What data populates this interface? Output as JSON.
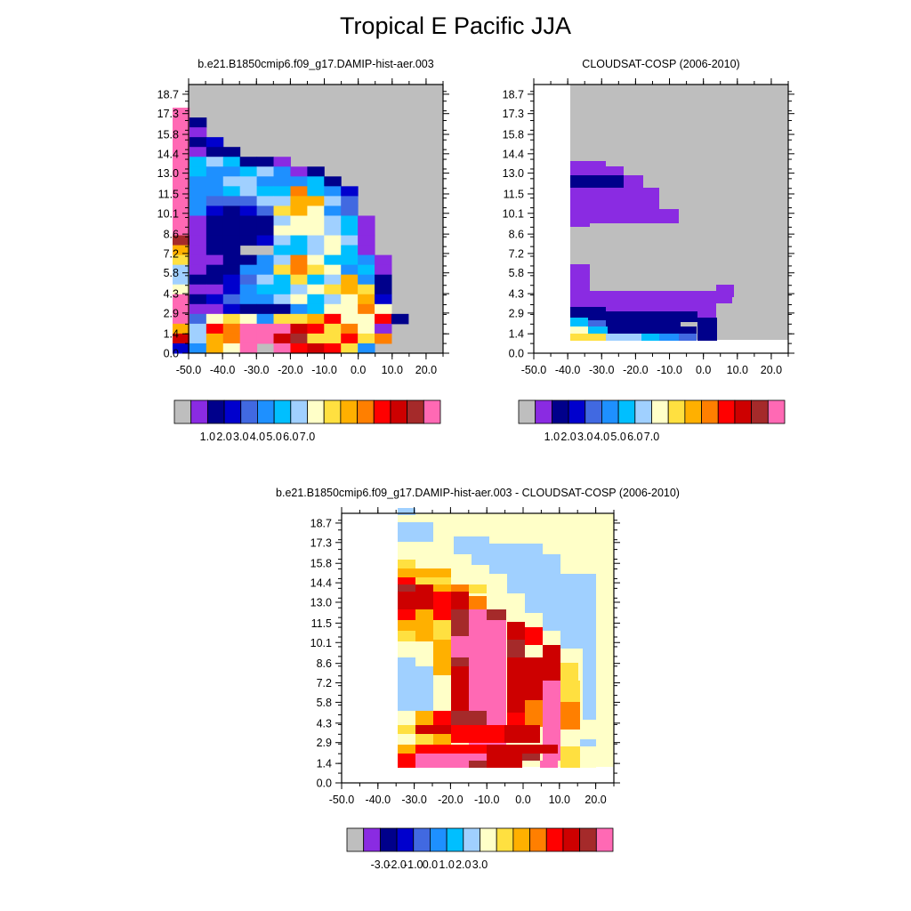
{
  "page": {
    "title": "Tropical E Pacific JJA"
  },
  "colors": {
    "missing": "#bebebe",
    "palette": [
      "#bebebe",
      "#8a2be2",
      "#00008b",
      "#0000cd",
      "#4169e1",
      "#1e90ff",
      "#00bfff",
      "#a0d0ff",
      "#ffffc8",
      "#ffe040",
      "#ffb000",
      "#ff7f00",
      "#ff0000",
      "#cd0000",
      "#a52a2a",
      "#ff69b4"
    ]
  },
  "chart_data": [
    {
      "type": "heatmap",
      "title": "b.e21.B1850cmip6.f09_g17.DAMIP-hist-aer.003",
      "xlabel": "",
      "ylabel": "",
      "x_ticks": [
        "-50.0",
        "-40.0",
        "-30.0",
        "-20.0",
        "-10.0",
        "0.0",
        "10.0",
        "20.0"
      ],
      "y_ticks": [
        "0.0",
        "1.4",
        "2.9",
        "4.3",
        "5.8",
        "7.2",
        "8.6",
        "10.1",
        "11.5",
        "13.0",
        "14.4",
        "15.8",
        "17.3",
        "18.7"
      ],
      "xlim": [
        -50,
        25
      ],
      "ylim": [
        0,
        19.4
      ],
      "colorbar_labels": [
        "1.0",
        "2.0",
        "3.0",
        "4.0",
        "5.0",
        "6.0",
        "7.0"
      ],
      "grid_note": "rows listed from top (y≈19) to bottom (y≈0); columns from x=-50 to x=25 in 5-unit steps; values are color-bin indices (0=missing/grey, 1..15 = colorbar bins)",
      "cells": [
        "0000000000000000",
        "f000000000000000",
        "f200000000000000",
        "f100000000000000",
        "f230000000000000",
        "f122000000000000",
        "f676221000000000",
        "f655675120000000",
        "f557755562000000",
        "f556766b65300000",
        "f544477aa7400000",
        "f532349a85400000",
        "f122227887610000",
        "f122228887610000",
        "e122237678710000",
        "a122006678610000",
        "9112257b86651000",
        "7122559b98561000",
        "7223476967a52000",
        "8113566789a92000",
        "f2345578678a3000",
        "f1132225688b8000",
        "f4898599ac88c200",
        "a7cbfffdc9b81000",
        "d7abffde99c9b000",
        "35a8f0fcdc950000"
      ]
    },
    {
      "type": "heatmap",
      "title": "CLOUDSAT-COSP (2006-2010)",
      "xlabel": "",
      "ylabel": "",
      "x_ticks": [
        "-50.0",
        "-40.0",
        "-30.0",
        "-20.0",
        "-10.0",
        "0.0",
        "10.0",
        "20.0"
      ],
      "y_ticks": [
        "0.0",
        "1.4",
        "2.9",
        "4.3",
        "5.8",
        "7.2",
        "8.6",
        "10.1",
        "11.5",
        "13.0",
        "14.4",
        "15.8",
        "17.3",
        "18.7"
      ],
      "xlim": [
        -50,
        25
      ],
      "ylim": [
        0,
        19.4
      ],
      "colorbar_labels": [
        "1.0",
        "2.0",
        "3.0",
        "4.0",
        "5.0",
        "6.0",
        "7.0"
      ],
      "note": "left of x≈-35 is white (no data); grey = missing; bottom row y<0.4 white"
    },
    {
      "type": "heatmap",
      "title": "b.e21.B1850cmip6.f09_g17.DAMIP-hist-aer.003 - CLOUDSAT-COSP (2006-2010)",
      "xlabel": "",
      "ylabel": "",
      "x_ticks": [
        "-50.0",
        "-40.0",
        "-30.0",
        "-20.0",
        "-10.0",
        "0.0",
        "10.0",
        "20.0"
      ],
      "y_ticks": [
        "0.0",
        "1.4",
        "2.9",
        "4.3",
        "5.8",
        "7.2",
        "8.6",
        "10.1",
        "11.5",
        "13.0",
        "14.4",
        "15.8",
        "17.3",
        "18.7"
      ],
      "xlim": [
        -50,
        25
      ],
      "ylim": [
        0,
        19.4
      ],
      "colorbar_labels": [
        "-3.0",
        "-2.0",
        "-1.0",
        "0.0",
        "1.0",
        "2.0",
        "3.0"
      ]
    }
  ]
}
